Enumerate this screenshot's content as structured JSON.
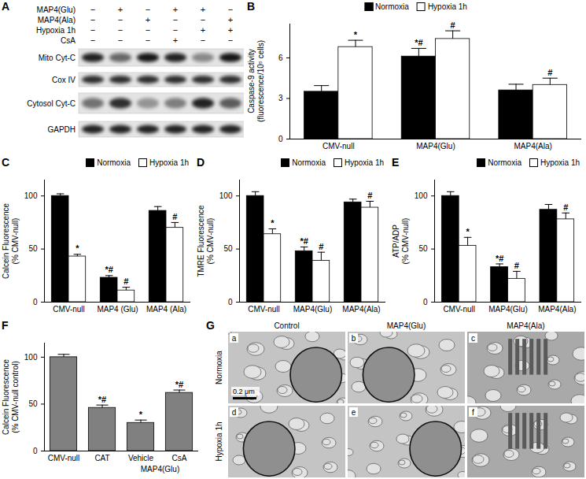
{
  "chart_data": [
    {
      "panel": "B",
      "type": "bar",
      "ylabel": [
        "Caspase-9 activity",
        "(fluorescence/10⁵ cells)"
      ],
      "categories": [
        "CMV-null",
        "MAP4(Glu)",
        "MAP4(Ala)"
      ],
      "series": [
        {
          "name": "Normoxia",
          "color": "#000000",
          "values": [
            3.5,
            6.1,
            3.6
          ],
          "errors": [
            0.45,
            0.6,
            0.45
          ],
          "significance": [
            null,
            "*#",
            null
          ]
        },
        {
          "name": "Hypoxia 1h",
          "color": "#ffffff",
          "values": [
            6.8,
            7.4,
            4.0
          ],
          "errors": [
            0.5,
            0.6,
            0.5
          ],
          "significance": [
            "*",
            "#",
            "#"
          ]
        }
      ],
      "ylim": [
        0,
        8.5
      ],
      "yticks": [
        0,
        3,
        6
      ],
      "legend": "top"
    },
    {
      "panel": "C",
      "type": "bar",
      "ylabel": [
        "Calcein Fluorescence",
        "(% CMV-null)"
      ],
      "categories": [
        "CMV-null",
        "MAP4 (Glu)",
        "MAP4 (Ala)"
      ],
      "series": [
        {
          "name": "Normoxia",
          "color": "#000000",
          "values": [
            100,
            23,
            86
          ],
          "errors": [
            2,
            2,
            4
          ],
          "significance": [
            null,
            "*#",
            null
          ]
        },
        {
          "name": "Hypoxia 1h",
          "color": "#ffffff",
          "values": [
            43,
            11,
            70
          ],
          "errors": [
            2,
            3,
            5
          ],
          "significance": [
            "*",
            "#",
            "#"
          ]
        }
      ],
      "ylim": [
        0,
        115
      ],
      "yticks": [
        0,
        50,
        100
      ],
      "legend": "top-right"
    },
    {
      "panel": "D",
      "type": "bar",
      "ylabel": [
        "TMRE Fluorescence",
        "(% CMV-null)"
      ],
      "categories": [
        "CMV-null",
        "MAP4(Glu)",
        "MAP4(Ala)"
      ],
      "series": [
        {
          "name": "Normoxia",
          "color": "#000000",
          "values": [
            100,
            48,
            94
          ],
          "errors": [
            4,
            4,
            3
          ],
          "significance": [
            null,
            "*#",
            null
          ]
        },
        {
          "name": "Hypoxia 1h",
          "color": "#ffffff",
          "values": [
            64,
            39,
            89
          ],
          "errors": [
            5,
            8,
            6
          ],
          "significance": [
            "*",
            "#",
            "#"
          ]
        }
      ],
      "ylim": [
        0,
        115
      ],
      "yticks": [
        0,
        50,
        100
      ],
      "legend": "top-right"
    },
    {
      "panel": "E",
      "type": "bar",
      "ylabel": [
        "ATP/ADP",
        "(% CMV-null)"
      ],
      "categories": [
        "CMV-null",
        "MAP4(Glu)",
        "MAP4(Ala)"
      ],
      "series": [
        {
          "name": "Normoxia",
          "color": "#000000",
          "values": [
            100,
            33,
            87
          ],
          "errors": [
            4,
            3,
            5
          ],
          "significance": [
            null,
            "*#",
            null
          ]
        },
        {
          "name": "Hypoxia 1h",
          "color": "#ffffff",
          "values": [
            53,
            22,
            78
          ],
          "errors": [
            8,
            7,
            6
          ],
          "significance": [
            "*",
            "#",
            "#"
          ]
        }
      ],
      "ylim": [
        0,
        115
      ],
      "yticks": [
        0,
        50,
        100
      ],
      "legend": "top-right"
    },
    {
      "panel": "F",
      "type": "bar",
      "ylabel": [
        "Calcein Fluorescence",
        "(% CMV-null control)"
      ],
      "categories": [
        "CMV-null",
        "CAT",
        "Vehicle",
        "CsA"
      ],
      "values": [
        100,
        46,
        30,
        62
      ],
      "errors": [
        3,
        3,
        3,
        3
      ],
      "significance": [
        null,
        "*#",
        "*",
        "*#"
      ],
      "color": "#808080",
      "group_label": {
        "text": "MAP4(Glu)",
        "categories": [
          "Vehicle",
          "CsA"
        ]
      },
      "ylim": [
        0,
        115
      ],
      "yticks": [
        0,
        50,
        100
      ]
    }
  ],
  "blot": {
    "panel": "A",
    "treatments": [
      {
        "label": "MAP4(Glu)",
        "signs": [
          "−",
          "+",
          "−",
          "+",
          "+",
          "−"
        ]
      },
      {
        "label": "MAP4(Ala)",
        "signs": [
          "−",
          "−",
          "+",
          "−",
          "−",
          "+"
        ]
      },
      {
        "label": "Hypoxia 1h",
        "signs": [
          "−",
          "−",
          "−",
          "−",
          "+",
          "+"
        ]
      },
      {
        "label": "CsA",
        "signs": [
          "−",
          "−",
          "−",
          "+",
          "−",
          "−"
        ]
      }
    ],
    "bands": [
      {
        "label": "Mito Cyt-C",
        "intensity": [
          0.85,
          0.55,
          0.9,
          0.85,
          0.4,
          0.9
        ]
      },
      {
        "label": "Cox IV",
        "intensity": [
          0.8,
          0.8,
          0.8,
          0.8,
          0.8,
          0.8
        ]
      },
      {
        "label": "Cytosol Cyt-C",
        "intensity": [
          0.5,
          0.8,
          0.35,
          0.45,
          0.85,
          0.6
        ]
      },
      {
        "label": "GAPDH",
        "intensity": [
          0.85,
          0.85,
          0.85,
          0.85,
          0.85,
          0.85
        ]
      }
    ]
  },
  "micrographs": {
    "panel": "G",
    "columns": [
      "Control",
      "MAP4(Glu)",
      "MAP4(Ala)"
    ],
    "rows": [
      "Normoxia",
      "Hypoxia 1h"
    ],
    "images": [
      "a",
      "b",
      "c",
      "d",
      "e",
      "f"
    ],
    "scale_bar": "0.2 μm"
  }
}
